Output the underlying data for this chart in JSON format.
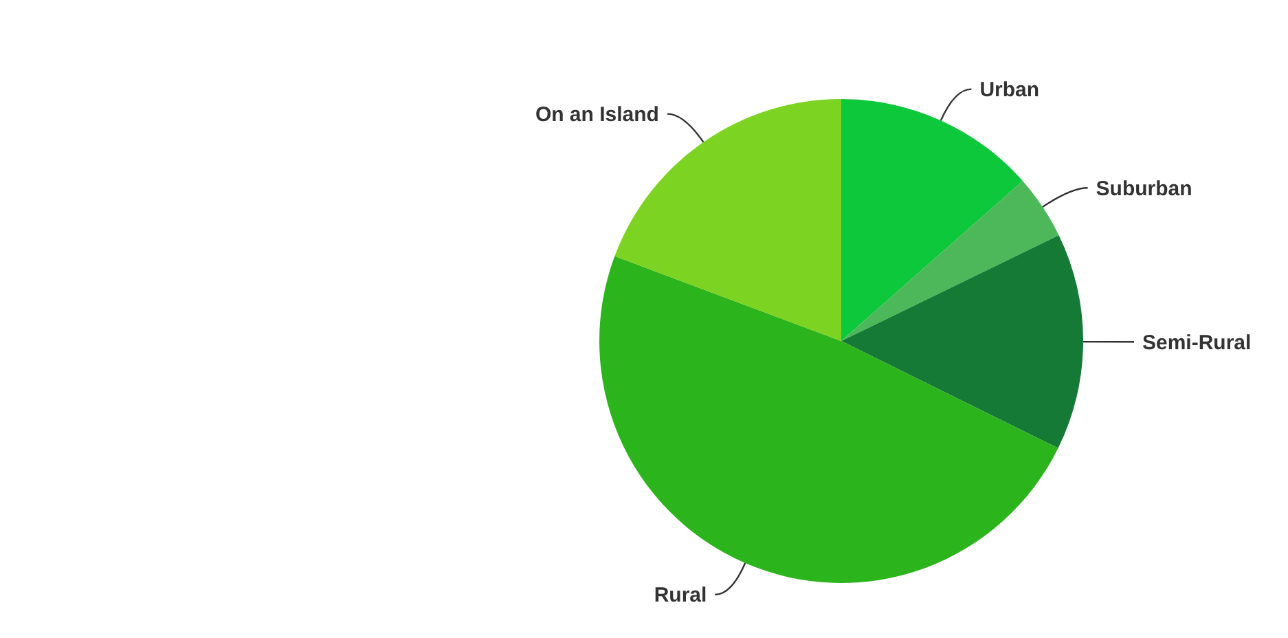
{
  "chart_data": {
    "type": "pie",
    "categories": [
      "Urban",
      "Suburban",
      "Semi-Rural",
      "Rural",
      "On an Island"
    ],
    "values": [
      13.5,
      4.3,
      14.5,
      48.4,
      19.3
    ],
    "colors": [
      "#0dc83a",
      "#4cb85a",
      "#157a35",
      "#2cb41c",
      "#7dd321"
    ]
  }
}
